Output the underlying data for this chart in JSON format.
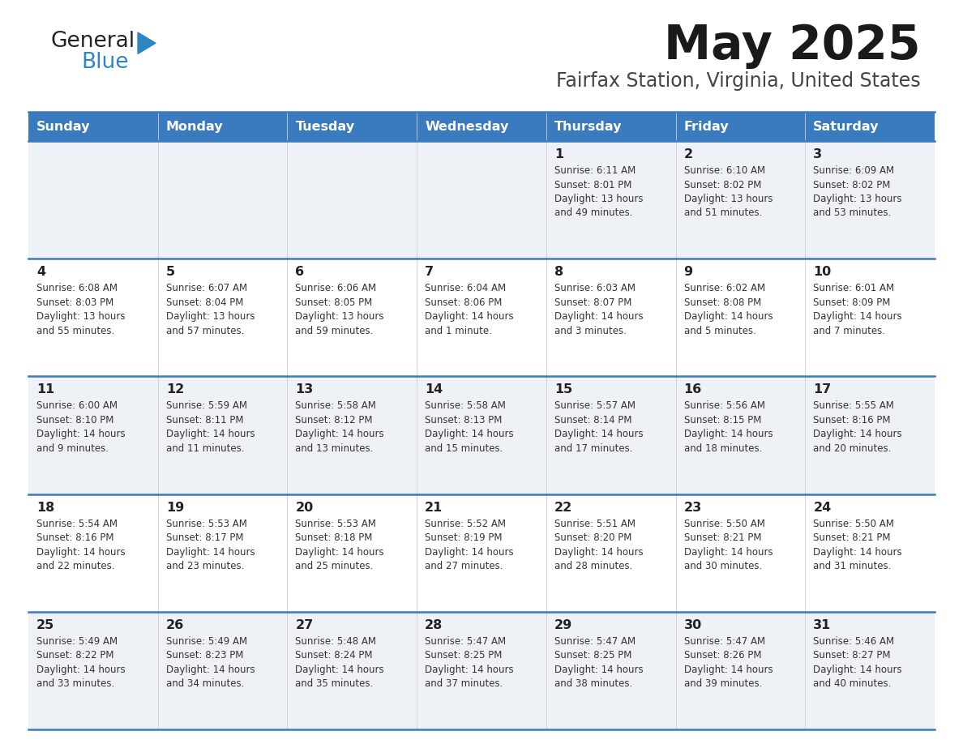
{
  "title": "May 2025",
  "subtitle": "Fairfax Station, Virginia, United States",
  "header_color": "#3a7abf",
  "header_text_color": "#ffffff",
  "cell_bg_color_odd": "#eef2f7",
  "cell_bg_color_even": "#ffffff",
  "day_number_color": "#222222",
  "text_color": "#333333",
  "separator_color": "#3a7abf",
  "border_color": "#3a7abf",
  "days_of_week": [
    "Sunday",
    "Monday",
    "Tuesday",
    "Wednesday",
    "Thursday",
    "Friday",
    "Saturday"
  ],
  "logo_general_color": "#222222",
  "logo_blue_color": "#2e86c1",
  "logo_triangle_color": "#2e86c1",
  "weeks": [
    [
      {
        "date": "",
        "sunrise": "",
        "sunset": "",
        "daylight": ""
      },
      {
        "date": "",
        "sunrise": "",
        "sunset": "",
        "daylight": ""
      },
      {
        "date": "",
        "sunrise": "",
        "sunset": "",
        "daylight": ""
      },
      {
        "date": "",
        "sunrise": "",
        "sunset": "",
        "daylight": ""
      },
      {
        "date": "1",
        "sunrise": "6:11 AM",
        "sunset": "8:01 PM",
        "daylight": "13 hours\nand 49 minutes."
      },
      {
        "date": "2",
        "sunrise": "6:10 AM",
        "sunset": "8:02 PM",
        "daylight": "13 hours\nand 51 minutes."
      },
      {
        "date": "3",
        "sunrise": "6:09 AM",
        "sunset": "8:02 PM",
        "daylight": "13 hours\nand 53 minutes."
      }
    ],
    [
      {
        "date": "4",
        "sunrise": "6:08 AM",
        "sunset": "8:03 PM",
        "daylight": "13 hours\nand 55 minutes."
      },
      {
        "date": "5",
        "sunrise": "6:07 AM",
        "sunset": "8:04 PM",
        "daylight": "13 hours\nand 57 minutes."
      },
      {
        "date": "6",
        "sunrise": "6:06 AM",
        "sunset": "8:05 PM",
        "daylight": "13 hours\nand 59 minutes."
      },
      {
        "date": "7",
        "sunrise": "6:04 AM",
        "sunset": "8:06 PM",
        "daylight": "14 hours\nand 1 minute."
      },
      {
        "date": "8",
        "sunrise": "6:03 AM",
        "sunset": "8:07 PM",
        "daylight": "14 hours\nand 3 minutes."
      },
      {
        "date": "9",
        "sunrise": "6:02 AM",
        "sunset": "8:08 PM",
        "daylight": "14 hours\nand 5 minutes."
      },
      {
        "date": "10",
        "sunrise": "6:01 AM",
        "sunset": "8:09 PM",
        "daylight": "14 hours\nand 7 minutes."
      }
    ],
    [
      {
        "date": "11",
        "sunrise": "6:00 AM",
        "sunset": "8:10 PM",
        "daylight": "14 hours\nand 9 minutes."
      },
      {
        "date": "12",
        "sunrise": "5:59 AM",
        "sunset": "8:11 PM",
        "daylight": "14 hours\nand 11 minutes."
      },
      {
        "date": "13",
        "sunrise": "5:58 AM",
        "sunset": "8:12 PM",
        "daylight": "14 hours\nand 13 minutes."
      },
      {
        "date": "14",
        "sunrise": "5:58 AM",
        "sunset": "8:13 PM",
        "daylight": "14 hours\nand 15 minutes."
      },
      {
        "date": "15",
        "sunrise": "5:57 AM",
        "sunset": "8:14 PM",
        "daylight": "14 hours\nand 17 minutes."
      },
      {
        "date": "16",
        "sunrise": "5:56 AM",
        "sunset": "8:15 PM",
        "daylight": "14 hours\nand 18 minutes."
      },
      {
        "date": "17",
        "sunrise": "5:55 AM",
        "sunset": "8:16 PM",
        "daylight": "14 hours\nand 20 minutes."
      }
    ],
    [
      {
        "date": "18",
        "sunrise": "5:54 AM",
        "sunset": "8:16 PM",
        "daylight": "14 hours\nand 22 minutes."
      },
      {
        "date": "19",
        "sunrise": "5:53 AM",
        "sunset": "8:17 PM",
        "daylight": "14 hours\nand 23 minutes."
      },
      {
        "date": "20",
        "sunrise": "5:53 AM",
        "sunset": "8:18 PM",
        "daylight": "14 hours\nand 25 minutes."
      },
      {
        "date": "21",
        "sunrise": "5:52 AM",
        "sunset": "8:19 PM",
        "daylight": "14 hours\nand 27 minutes."
      },
      {
        "date": "22",
        "sunrise": "5:51 AM",
        "sunset": "8:20 PM",
        "daylight": "14 hours\nand 28 minutes."
      },
      {
        "date": "23",
        "sunrise": "5:50 AM",
        "sunset": "8:21 PM",
        "daylight": "14 hours\nand 30 minutes."
      },
      {
        "date": "24",
        "sunrise": "5:50 AM",
        "sunset": "8:21 PM",
        "daylight": "14 hours\nand 31 minutes."
      }
    ],
    [
      {
        "date": "25",
        "sunrise": "5:49 AM",
        "sunset": "8:22 PM",
        "daylight": "14 hours\nand 33 minutes."
      },
      {
        "date": "26",
        "sunrise": "5:49 AM",
        "sunset": "8:23 PM",
        "daylight": "14 hours\nand 34 minutes."
      },
      {
        "date": "27",
        "sunrise": "5:48 AM",
        "sunset": "8:24 PM",
        "daylight": "14 hours\nand 35 minutes."
      },
      {
        "date": "28",
        "sunrise": "5:47 AM",
        "sunset": "8:25 PM",
        "daylight": "14 hours\nand 37 minutes."
      },
      {
        "date": "29",
        "sunrise": "5:47 AM",
        "sunset": "8:25 PM",
        "daylight": "14 hours\nand 38 minutes."
      },
      {
        "date": "30",
        "sunrise": "5:47 AM",
        "sunset": "8:26 PM",
        "daylight": "14 hours\nand 39 minutes."
      },
      {
        "date": "31",
        "sunrise": "5:46 AM",
        "sunset": "8:27 PM",
        "daylight": "14 hours\nand 40 minutes."
      }
    ]
  ]
}
